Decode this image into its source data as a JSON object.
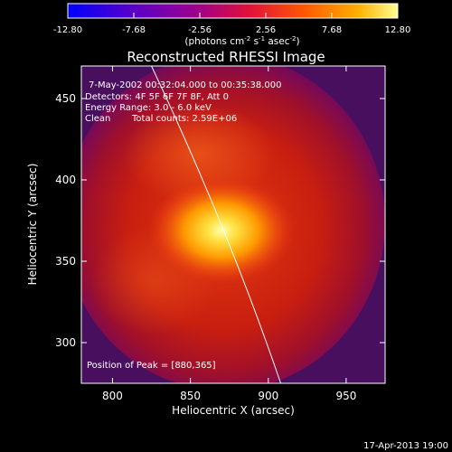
{
  "chart_data": {
    "type": "heatmap",
    "title": "Reconstructed RHESSI Image",
    "xlabel": "Heliocentric X (arcsec)",
    "ylabel": "Heliocentric Y (arcsec)",
    "xlim": [
      780,
      975
    ],
    "ylim": [
      275,
      470
    ],
    "x_ticks": [
      800,
      850,
      900,
      950
    ],
    "y_ticks": [
      300,
      350,
      400,
      450
    ],
    "colorbar": {
      "min": -12.8,
      "max": 12.8,
      "ticks": [
        "-12.80",
        "-7.68",
        "-2.56",
        "2.56",
        "7.68",
        "12.80"
      ],
      "unit_label": "(photons cm",
      "unit_exp1": "-2",
      "unit_mid": " s",
      "unit_exp2": "-1",
      "unit_mid2": " asec",
      "unit_exp3": "-2",
      "unit_close": ")"
    },
    "annotations": {
      "time": "7-May-2002 00:32:04.000 to 00:35:38.000",
      "detectors": "Detectors: 4F 5F 6F 7F 8F, Att 0",
      "energy": "Energy Range: 3.0 - 6.0 keV",
      "clean": "Clean",
      "counts": "Total counts: 2.59E+06",
      "peak": "Position of Peak = [880,365]"
    },
    "peak_position": [
      880,
      365
    ],
    "limb_line": {
      "x": [
        825,
        908
      ],
      "y": [
        470,
        275
      ]
    },
    "footer": "17-Apr-2013 19:00"
  }
}
